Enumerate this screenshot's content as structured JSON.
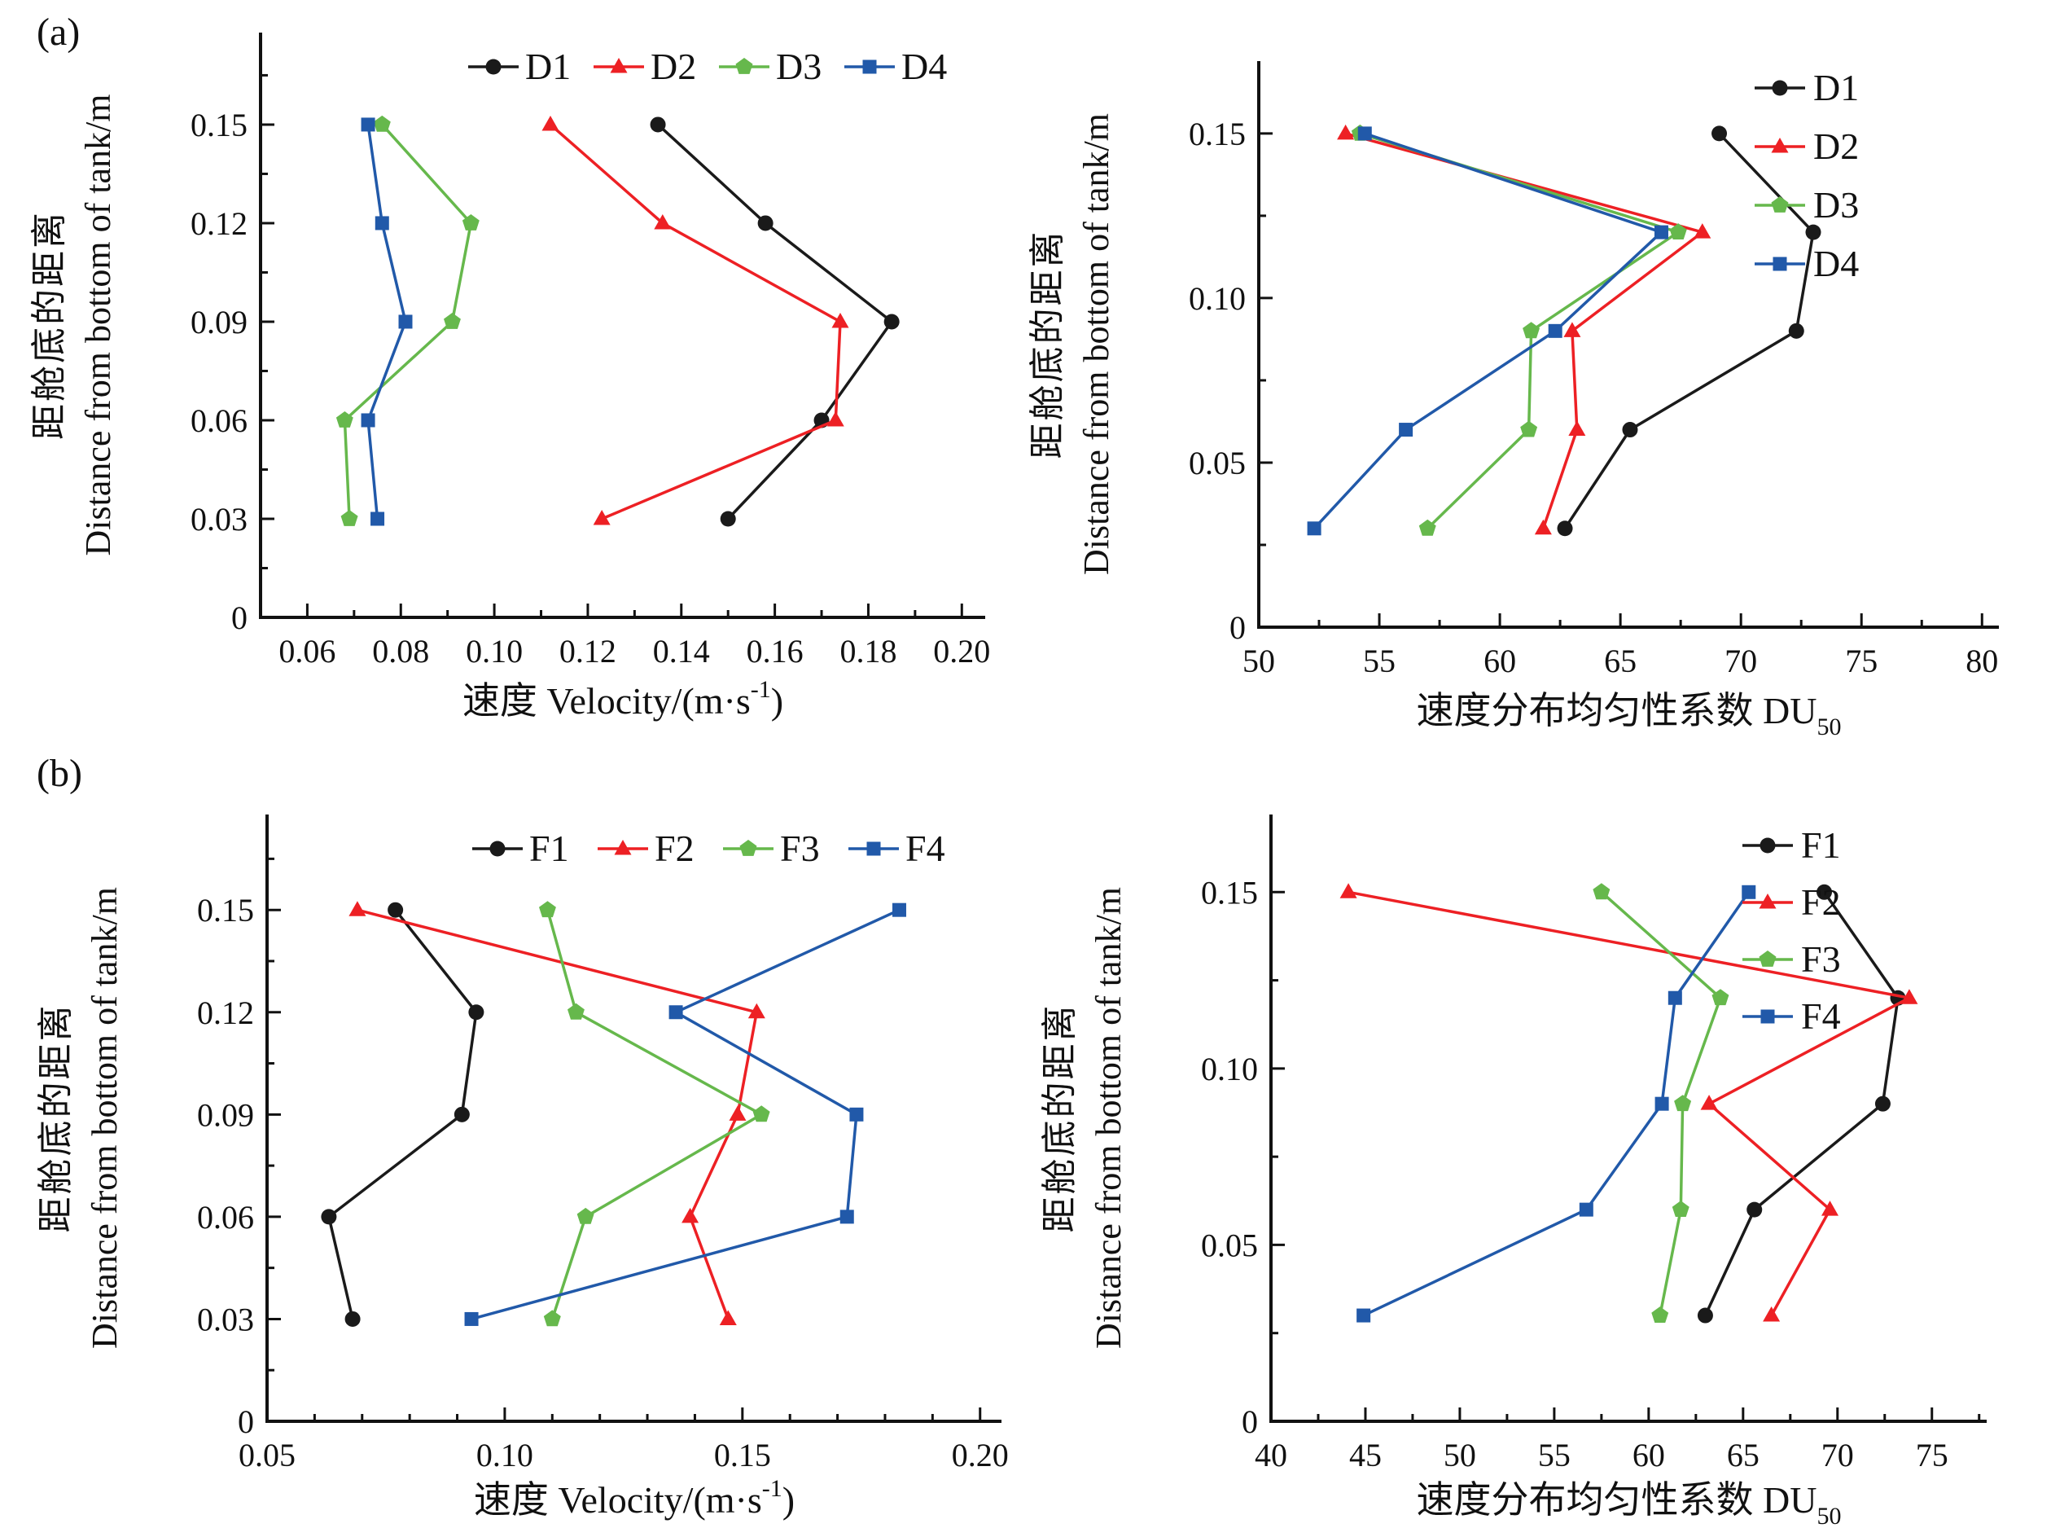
{
  "figure": {
    "panels": [
      {
        "label": "(a)"
      },
      {
        "label": "(b)"
      }
    ]
  },
  "colors": {
    "black": "#1a1a1a",
    "red": "#ed2024",
    "green": "#66b84c",
    "blue": "#2159a9"
  },
  "axis_text": {
    "y_title_zh": "距舱底的距离",
    "y_title_en": "Distance from bottom of tank/m",
    "x_velocity": {
      "prefix": "速度 Velocity/(m·s",
      "sup": "-1",
      "suffix": ")"
    },
    "x_du": {
      "prefix": "速度分布均匀性系数 DU",
      "sub": "50"
    }
  },
  "chart_data": [
    {
      "id": "a-left",
      "type": "line",
      "panel": "a",
      "title_kind": "velocity",
      "x_axis": {
        "min": 0.05,
        "max": 0.205,
        "major_ticks": [
          0.06,
          0.08,
          0.1,
          0.12,
          0.14,
          0.16,
          0.18,
          0.2
        ],
        "tick_labels": [
          "0.06",
          "0.08",
          "0.10",
          "0.12",
          "0.14",
          "0.16",
          "0.18",
          "0.20"
        ],
        "minor_ticks": [
          0.05,
          0.07,
          0.09,
          0.11,
          0.13,
          0.15,
          0.17,
          0.19
        ]
      },
      "y_axis": {
        "min": 0,
        "max": 0.178,
        "major_ticks": [
          0,
          0.03,
          0.06,
          0.09,
          0.12,
          0.15
        ],
        "tick_labels": [
          "0",
          "0.03",
          "0.06",
          "0.09",
          "0.12",
          "0.15"
        ],
        "minor_ticks": [
          0.015,
          0.045,
          0.075,
          0.105,
          0.135,
          0.165
        ]
      },
      "y_points": [
        0.03,
        0.06,
        0.09,
        0.12,
        0.15
      ],
      "legend": {
        "orientation": "horizontal"
      },
      "series": [
        {
          "name": "D1",
          "marker": "circle",
          "color": "black",
          "x_values": [
            0.15,
            0.17,
            0.185,
            0.158,
            0.135
          ]
        },
        {
          "name": "D2",
          "marker": "triangle",
          "color": "red",
          "x_values": [
            0.123,
            0.173,
            0.174,
            0.136,
            0.112
          ]
        },
        {
          "name": "D3",
          "marker": "pentagon",
          "color": "green",
          "x_values": [
            0.069,
            0.068,
            0.091,
            0.095,
            0.076
          ]
        },
        {
          "name": "D4",
          "marker": "square",
          "color": "blue",
          "x_values": [
            0.075,
            0.073,
            0.081,
            0.076,
            0.073
          ]
        }
      ]
    },
    {
      "id": "a-right",
      "type": "line",
      "panel": "a",
      "title_kind": "du",
      "x_axis": {
        "min": 50,
        "max": 80.7,
        "major_ticks": [
          50,
          55,
          60,
          65,
          70,
          75,
          80
        ],
        "tick_labels": [
          "50",
          "55",
          "60",
          "65",
          "70",
          "75",
          "80"
        ],
        "minor_ticks": [
          52.5,
          57.5,
          62.5,
          67.5,
          72.5,
          77.5
        ]
      },
      "y_axis": {
        "min": 0,
        "max": 0.172,
        "major_ticks": [
          0,
          0.05,
          0.1,
          0.15
        ],
        "tick_labels": [
          "0",
          "0.05",
          "0.10",
          "0.15"
        ],
        "minor_ticks": [
          0.025,
          0.075,
          0.125
        ]
      },
      "y_points": [
        0.03,
        0.06,
        0.09,
        0.12,
        0.15
      ],
      "legend": {
        "orientation": "vertical"
      },
      "series": [
        {
          "name": "D1",
          "marker": "circle",
          "color": "black",
          "x_values": [
            62.7,
            65.4,
            72.3,
            73.0,
            69.1
          ]
        },
        {
          "name": "D2",
          "marker": "triangle",
          "color": "red",
          "x_values": [
            61.8,
            63.2,
            63.0,
            68.4,
            53.6
          ]
        },
        {
          "name": "D3",
          "marker": "pentagon",
          "color": "green",
          "x_values": [
            57.0,
            61.2,
            61.3,
            67.4,
            54.2
          ]
        },
        {
          "name": "D4",
          "marker": "square",
          "color": "blue",
          "x_values": [
            52.3,
            56.1,
            62.3,
            66.7,
            54.4
          ]
        }
      ]
    },
    {
      "id": "b-left",
      "type": "line",
      "panel": "b",
      "title_kind": "velocity",
      "x_axis": {
        "min": 0.05,
        "max": 0.2045,
        "major_ticks": [
          0.05,
          0.1,
          0.15,
          0.2
        ],
        "tick_labels": [
          "0.05",
          "0.10",
          "0.15",
          "0.20"
        ],
        "minor_ticks": [
          0.06,
          0.07,
          0.08,
          0.09,
          0.11,
          0.12,
          0.13,
          0.14,
          0.16,
          0.17,
          0.18,
          0.19
        ]
      },
      "y_axis": {
        "min": 0,
        "max": 0.178,
        "major_ticks": [
          0,
          0.03,
          0.06,
          0.09,
          0.12,
          0.15
        ],
        "tick_labels": [
          "0",
          "0.03",
          "0.06",
          "0.09",
          "0.12",
          "0.15"
        ],
        "minor_ticks": [
          0.015,
          0.045,
          0.075,
          0.105,
          0.135,
          0.165
        ]
      },
      "y_points": [
        0.03,
        0.06,
        0.09,
        0.12,
        0.15
      ],
      "legend": {
        "orientation": "horizontal"
      },
      "series": [
        {
          "name": "F1",
          "marker": "circle",
          "color": "black",
          "x_values": [
            0.068,
            0.063,
            0.091,
            0.094,
            0.077
          ]
        },
        {
          "name": "F2",
          "marker": "triangle",
          "color": "red",
          "x_values": [
            0.147,
            0.139,
            0.149,
            0.153,
            0.069
          ]
        },
        {
          "name": "F3",
          "marker": "pentagon",
          "color": "green",
          "x_values": [
            0.11,
            0.117,
            0.154,
            0.115,
            0.109
          ]
        },
        {
          "name": "F4",
          "marker": "square",
          "color": "blue",
          "x_values": [
            0.093,
            0.172,
            0.174,
            0.136,
            0.183
          ]
        }
      ]
    },
    {
      "id": "b-right",
      "type": "line",
      "panel": "b",
      "title_kind": "du",
      "x_axis": {
        "min": 40,
        "max": 77.9,
        "major_ticks": [
          40,
          45,
          50,
          55,
          60,
          65,
          70,
          75
        ],
        "tick_labels": [
          "40",
          "45",
          "50",
          "55",
          "60",
          "65",
          "70",
          "75"
        ],
        "minor_ticks": [
          42.5,
          47.5,
          52.5,
          57.5,
          62.5,
          67.5,
          72.5,
          77.5
        ]
      },
      "y_axis": {
        "min": 0,
        "max": 0.172,
        "major_ticks": [
          0,
          0.05,
          0.1,
          0.15
        ],
        "tick_labels": [
          "0",
          "0.05",
          "0.10",
          "0.15"
        ],
        "minor_ticks": [
          0.025,
          0.075,
          0.125
        ]
      },
      "y_points": [
        0.03,
        0.06,
        0.09,
        0.12,
        0.15
      ],
      "legend": {
        "orientation": "vertical"
      },
      "series": [
        {
          "name": "F1",
          "marker": "circle",
          "color": "black",
          "x_values": [
            63.0,
            65.6,
            72.4,
            73.2,
            69.3
          ]
        },
        {
          "name": "F2",
          "marker": "triangle",
          "color": "red",
          "x_values": [
            66.5,
            69.6,
            63.2,
            73.8,
            44.1
          ]
        },
        {
          "name": "F3",
          "marker": "pentagon",
          "color": "green",
          "x_values": [
            60.6,
            61.7,
            61.8,
            63.8,
            57.5
          ]
        },
        {
          "name": "F4",
          "marker": "square",
          "color": "blue",
          "x_values": [
            44.9,
            56.7,
            60.7,
            61.4,
            65.3
          ]
        }
      ]
    }
  ]
}
